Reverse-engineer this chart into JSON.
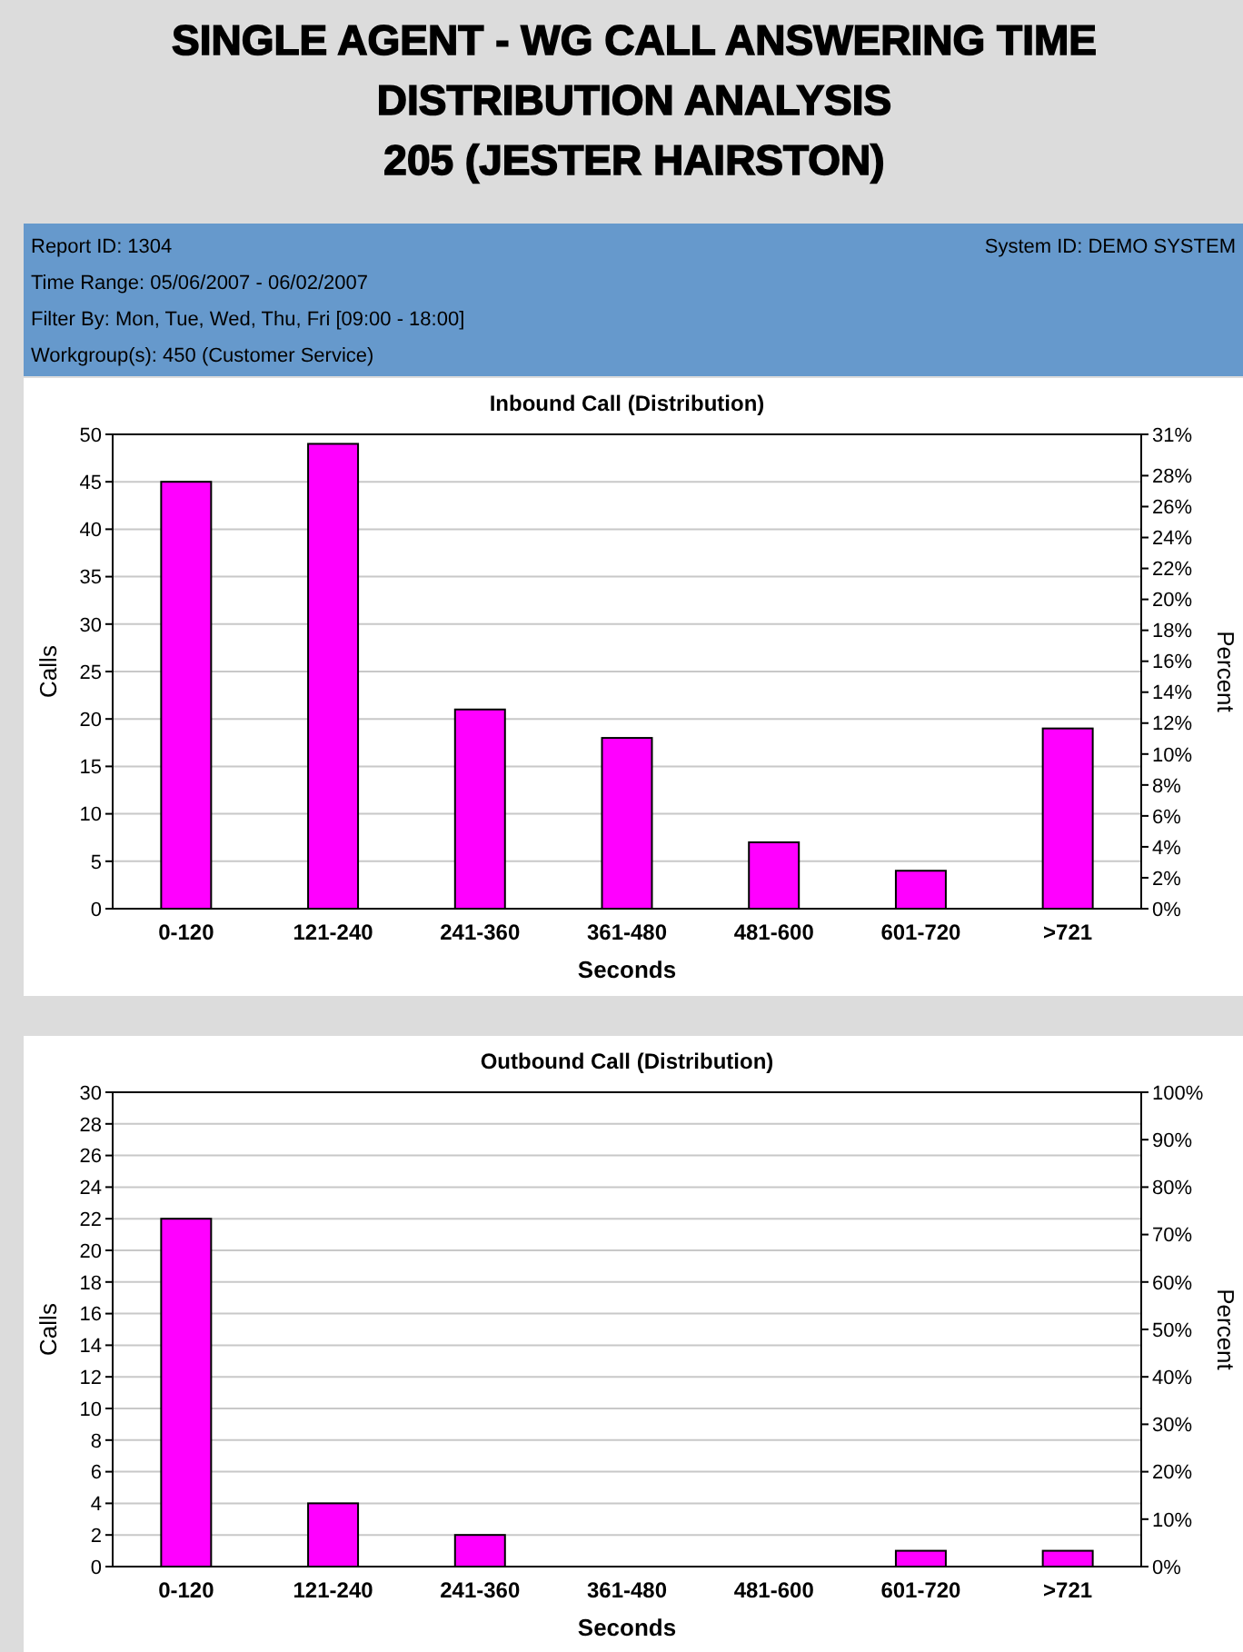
{
  "chart_data": [
    {
      "type": "other",
      "title": "SINGLE AGENT - WG CALL ANSWERING TIME DISTRIBUTION ANALYSIS",
      "subtitle": "205 (JESTER HAIRSTON)",
      "annotations": [
        "Report ID: 1304",
        "Time Range: 05/06/2007 - 06/02/2007",
        "Filter By: Mon, Tue, Wed, Thu, Fri [09:00 - 18:00]",
        "Workgroup(s): 450 (Customer Service)",
        "System ID: DEMO SYSTEM"
      ]
    },
    {
      "type": "bar",
      "title": "Inbound Call (Distribution)",
      "xlabel": "Seconds",
      "ylabel": "Calls",
      "y2label": "Percent",
      "categories": [
        "0-120",
        "121-240",
        "241-360",
        "361-480",
        "481-600",
        "601-720",
        ">721"
      ],
      "series": [
        {
          "color": "#ff00ff",
          "values": [
            45,
            49,
            21,
            18,
            7,
            4,
            19
          ]
        }
      ],
      "ylim": [
        0,
        50
      ],
      "yticks": [
        0,
        5,
        10,
        15,
        20,
        25,
        30,
        35,
        40,
        45,
        50
      ],
      "y2lim": [
        0,
        30.67
      ],
      "y2ticks": [
        {
          "value": 0,
          "label": "0%"
        },
        {
          "value": 2,
          "label": "2%"
        },
        {
          "value": 4,
          "label": "4%"
        },
        {
          "value": 6,
          "label": "6%"
        },
        {
          "value": 8,
          "label": "8%"
        },
        {
          "value": 10,
          "label": "10%"
        },
        {
          "value": 12,
          "label": "12%"
        },
        {
          "value": 14,
          "label": "14%"
        },
        {
          "value": 16,
          "label": "16%"
        },
        {
          "value": 18,
          "label": "18%"
        },
        {
          "value": 20,
          "label": "20%"
        },
        {
          "value": 22,
          "label": "22%"
        },
        {
          "value": 24,
          "label": "24%"
        },
        {
          "value": 26,
          "label": "26%"
        },
        {
          "value": 28,
          "label": "28%"
        },
        {
          "value": 30.67,
          "label": "31%"
        }
      ],
      "grid": "y"
    },
    {
      "type": "bar",
      "title": "Outbound Call (Distribution)",
      "xlabel": "Seconds",
      "ylabel": "Calls",
      "y2label": "Percent",
      "categories": [
        "0-120",
        "121-240",
        "241-360",
        "361-480",
        "481-600",
        "601-720",
        ">721"
      ],
      "series": [
        {
          "color": "#ff00ff",
          "values": [
            22,
            4,
            2,
            0,
            0,
            1,
            1
          ]
        }
      ],
      "ylim": [
        0,
        30
      ],
      "yticks": [
        0,
        2,
        4,
        6,
        8,
        10,
        12,
        14,
        16,
        18,
        20,
        22,
        24,
        26,
        28,
        30
      ],
      "y2lim": [
        0,
        100
      ],
      "y2ticks": [
        {
          "value": 0,
          "label": "0%"
        },
        {
          "value": 10,
          "label": "10%"
        },
        {
          "value": 20,
          "label": "20%"
        },
        {
          "value": 30,
          "label": "30%"
        },
        {
          "value": 40,
          "label": "40%"
        },
        {
          "value": 50,
          "label": "50%"
        },
        {
          "value": 60,
          "label": "60%"
        },
        {
          "value": 70,
          "label": "70%"
        },
        {
          "value": 80,
          "label": "80%"
        },
        {
          "value": 90,
          "label": "90%"
        },
        {
          "value": 100,
          "label": "100%"
        }
      ],
      "grid": "y"
    }
  ]
}
